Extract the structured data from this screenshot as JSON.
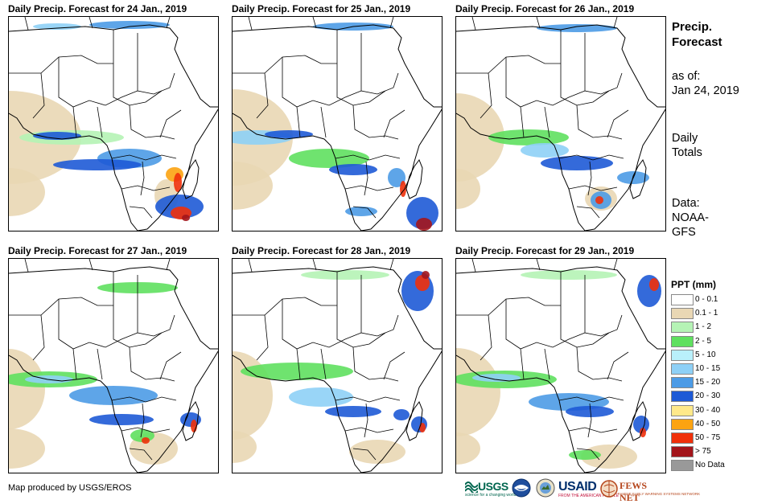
{
  "panels": [
    {
      "title": "Daily Precip. Forecast for 24 Jan., 2019"
    },
    {
      "title": "Daily Precip. Forecast for 25 Jan., 2019"
    },
    {
      "title": "Daily Precip. Forecast for 26 Jan., 2019"
    },
    {
      "title": "Daily Precip. Forecast for 27 Jan., 2019"
    },
    {
      "title": "Daily Precip. Forecast for 28 Jan., 2019"
    },
    {
      "title": "Daily Precip. Forecast for 29 Jan., 2019"
    }
  ],
  "side": {
    "title_line1": "Precip.",
    "title_line2": "Forecast",
    "asof_label": "as of:",
    "asof_date": "Jan 24, 2019",
    "totals_line1": "Daily",
    "totals_line2": "Totals",
    "data_line1": "Data:",
    "data_line2": "NOAA-",
    "data_line3": "GFS"
  },
  "legend": {
    "title": "PPT (mm)",
    "items": [
      {
        "label": "0 - 0.1",
        "color": "#ffffff"
      },
      {
        "label": "0.1 - 1",
        "color": "#e9d7b4"
      },
      {
        "label": "1 - 2",
        "color": "#b5f3b5"
      },
      {
        "label": "2 - 5",
        "color": "#5fe05f"
      },
      {
        "label": "5 - 10",
        "color": "#b9f0fb"
      },
      {
        "label": "10 - 15",
        "color": "#8ed0f6"
      },
      {
        "label": "15 - 20",
        "color": "#4c9be6"
      },
      {
        "label": "20 - 30",
        "color": "#1e5ad6"
      },
      {
        "label": "30 - 40",
        "color": "#ffe98a"
      },
      {
        "label": "40 - 50",
        "color": "#fca311"
      },
      {
        "label": "50 - 75",
        "color": "#f0300a"
      },
      {
        "label": "> 75",
        "color": "#a3151b"
      },
      {
        "label": "No Data",
        "color": "#999999"
      }
    ]
  },
  "footer": {
    "credit": "Map produced by USGS/EROS",
    "usgs": "USGS",
    "usgs_tagline": "science for a changing world",
    "usaid": "USAID",
    "usaid_tagline": "FROM THE AMERICAN PEOPLE",
    "fews": "FEWS NET",
    "fews_tagline": "FAMINE EARLY WARNING SYSTEMS NETWORK"
  }
}
